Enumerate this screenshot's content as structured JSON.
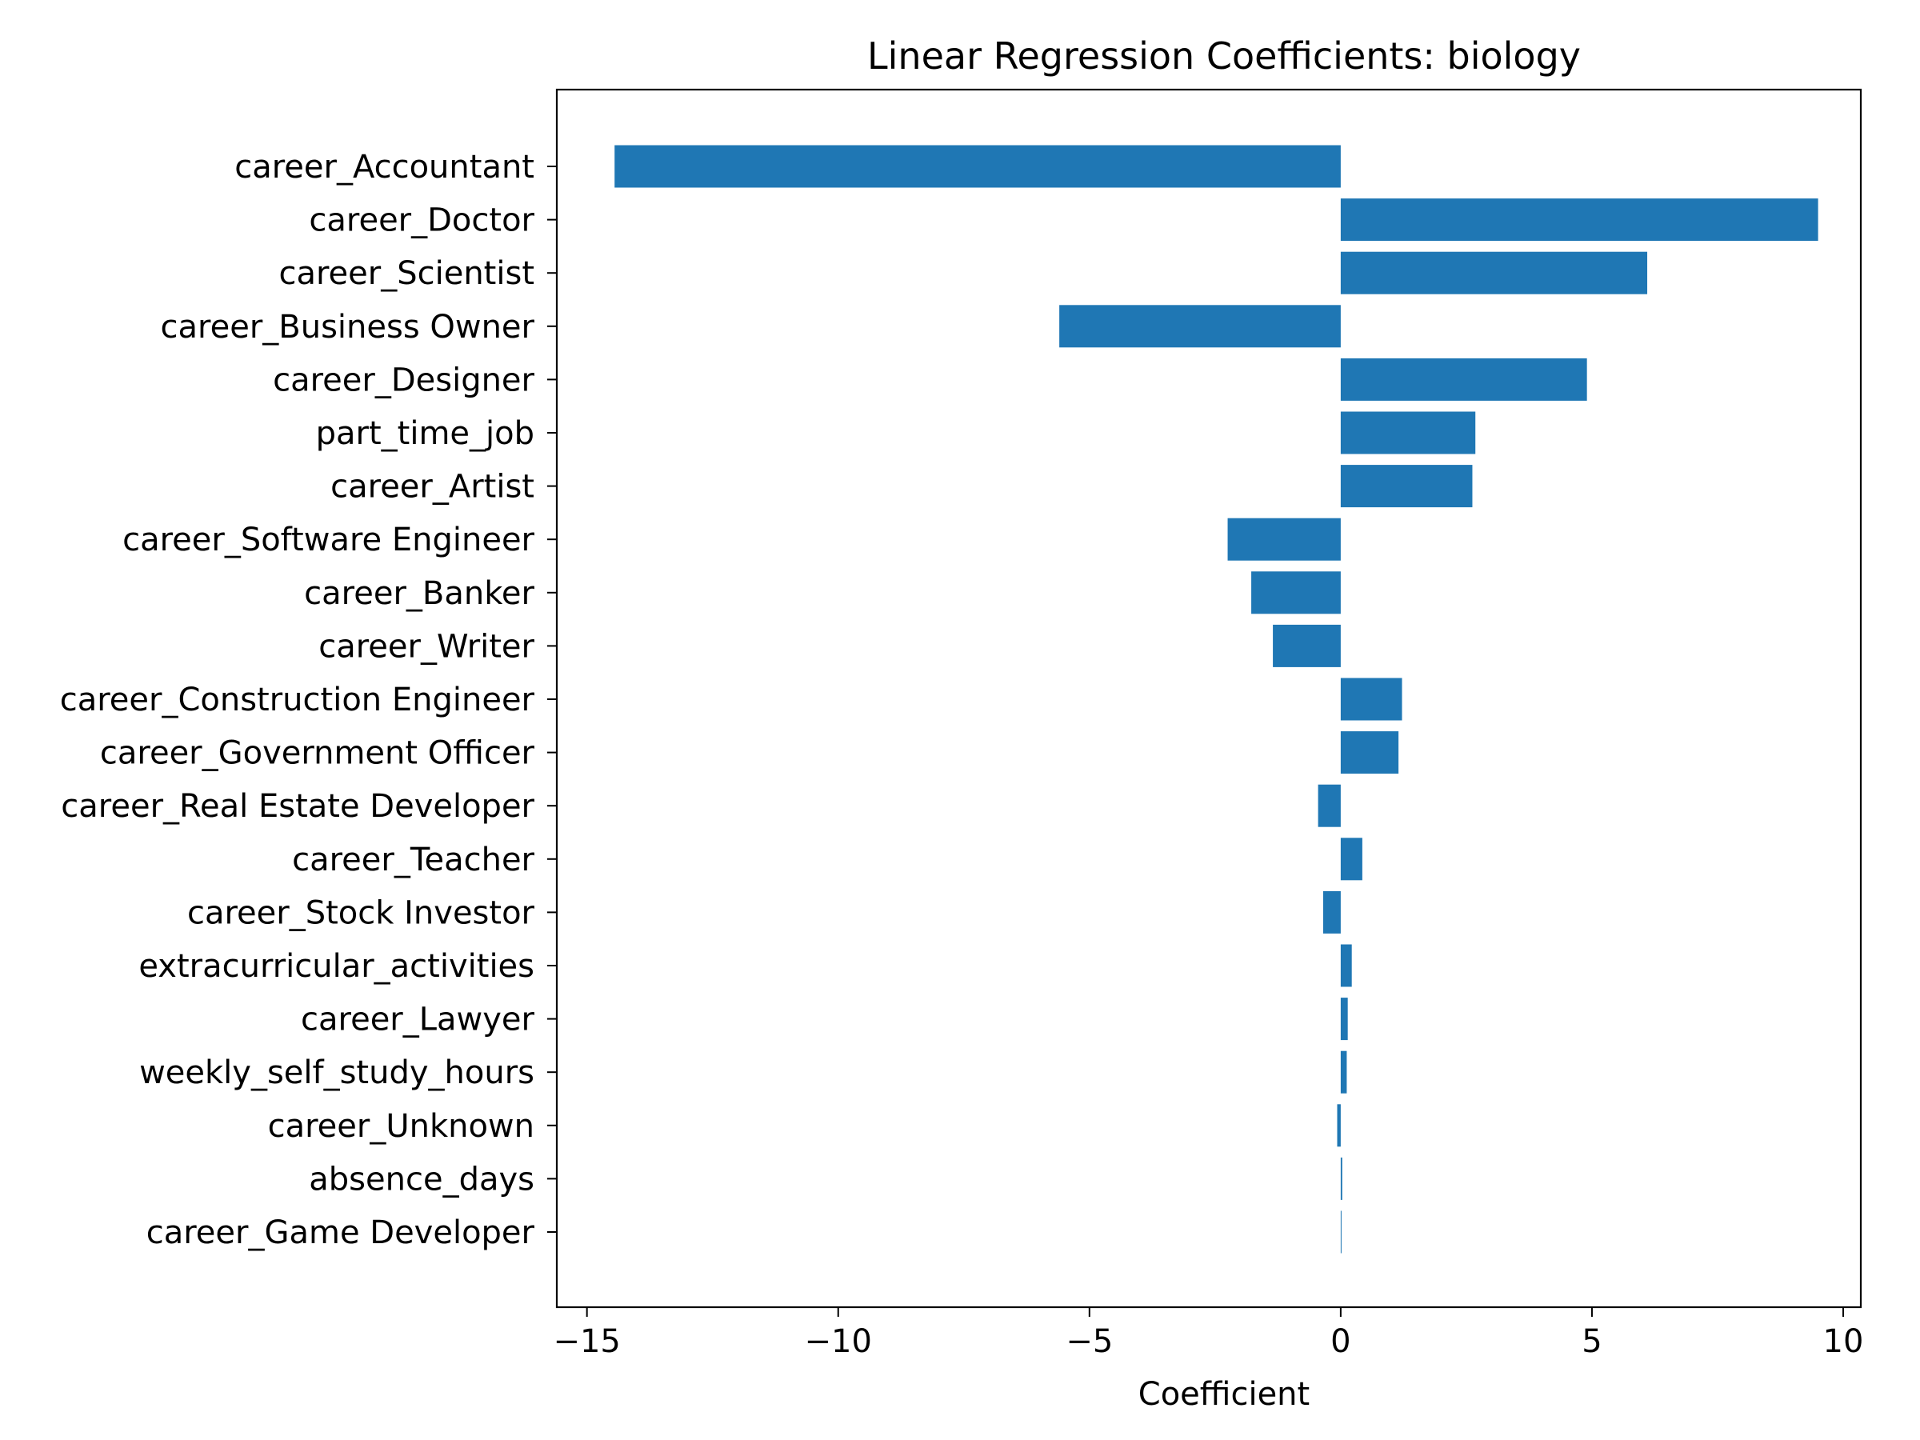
{
  "chart_data": {
    "type": "bar",
    "orientation": "horizontal",
    "title": "Linear Regression Coefficients: biology",
    "xlabel": "Coefficient",
    "ylabel": "",
    "xlim": [
      -15.6,
      10.35
    ],
    "xticks": [
      -15,
      -10,
      -5,
      0,
      5,
      10
    ],
    "xtick_labels": [
      "−15",
      "−10",
      "−5",
      "0",
      "5",
      "10"
    ],
    "grid": false,
    "bar_color": "#1f77b4",
    "categories": [
      "career_Accountant",
      "career_Doctor",
      "career_Scientist",
      "career_Business Owner",
      "career_Designer",
      "part_time_job",
      "career_Artist",
      "career_Software Engineer",
      "career_Banker",
      "career_Writer",
      "career_Construction Engineer",
      "career_Government Officer",
      "career_Real Estate Developer",
      "career_Teacher",
      "career_Stock Investor",
      "extracurricular_activities",
      "career_Lawyer",
      "weekly_self_study_hours",
      "career_Unknown",
      "absence_days",
      "career_Game Developer"
    ],
    "values": [
      -14.45,
      9.5,
      6.1,
      -5.6,
      4.9,
      2.68,
      2.62,
      -2.25,
      -1.78,
      -1.35,
      1.22,
      1.15,
      -0.45,
      0.43,
      -0.35,
      0.22,
      0.14,
      0.12,
      -0.07,
      0.03,
      0.01
    ]
  }
}
